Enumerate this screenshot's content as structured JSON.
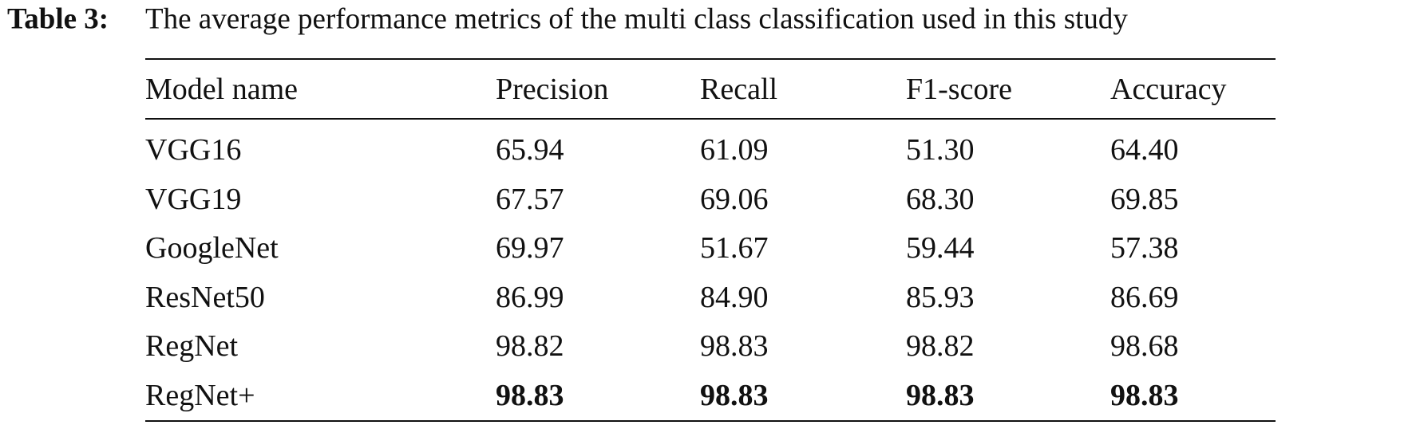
{
  "caption": {
    "label": "Table 3:",
    "text": "The average performance metrics of the multi class classification used in this study"
  },
  "table": {
    "header": [
      "Model name",
      "Precision",
      "Recall",
      "F1-score",
      "Accuracy"
    ],
    "rows": [
      [
        "VGG16",
        "65.94",
        "61.09",
        "51.30",
        "64.40"
      ],
      [
        "VGG19",
        "67.57",
        "69.06",
        "68.30",
        "69.85"
      ],
      [
        "GoogleNet",
        "69.97",
        "51.67",
        "59.44",
        "57.38"
      ],
      [
        "ResNet50",
        "86.99",
        "84.90",
        "85.93",
        "86.69"
      ],
      [
        "RegNet",
        "98.82",
        "98.83",
        "98.82",
        "98.68"
      ],
      [
        "RegNet+",
        "98.83",
        "98.83",
        "98.83",
        "98.83"
      ]
    ]
  }
}
